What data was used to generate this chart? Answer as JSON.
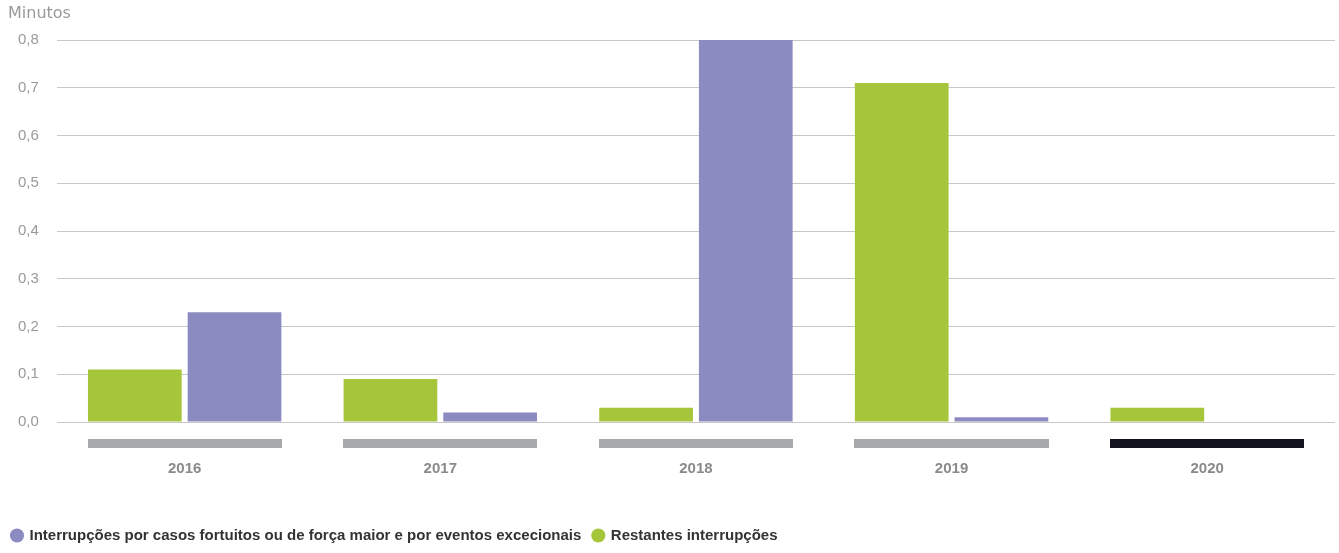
{
  "chart_data": {
    "type": "bar",
    "ylabel": "Minutos",
    "categories": [
      "2016",
      "2017",
      "2018",
      "2019",
      "2020"
    ],
    "series": [
      {
        "name": "Restantes interrupções",
        "color": "#a5c63b",
        "values": [
          0.11,
          0.09,
          0.03,
          0.71,
          0.03
        ]
      },
      {
        "name": "Interrupções por casos fortuitos ou de força maior e por eventos excecionais",
        "color": "#8b8bc2",
        "values": [
          0.23,
          0.02,
          0.8,
          0.01,
          0
        ]
      }
    ],
    "ylim": [
      0,
      0.8
    ],
    "yticks": [
      {
        "value": 0,
        "label": "0,0"
      },
      {
        "value": 0.1,
        "label": "0,1"
      },
      {
        "value": 0.2,
        "label": "0,2"
      },
      {
        "value": 0.3,
        "label": "0,3"
      },
      {
        "value": 0.4,
        "label": "0,4"
      },
      {
        "value": 0.5,
        "label": "0,5"
      },
      {
        "value": 0.6,
        "label": "0,6"
      },
      {
        "value": 0.7,
        "label": "0,7"
      },
      {
        "value": 0.8,
        "label": "0,8"
      }
    ],
    "grid": "y",
    "legend": "bottom left"
  }
}
